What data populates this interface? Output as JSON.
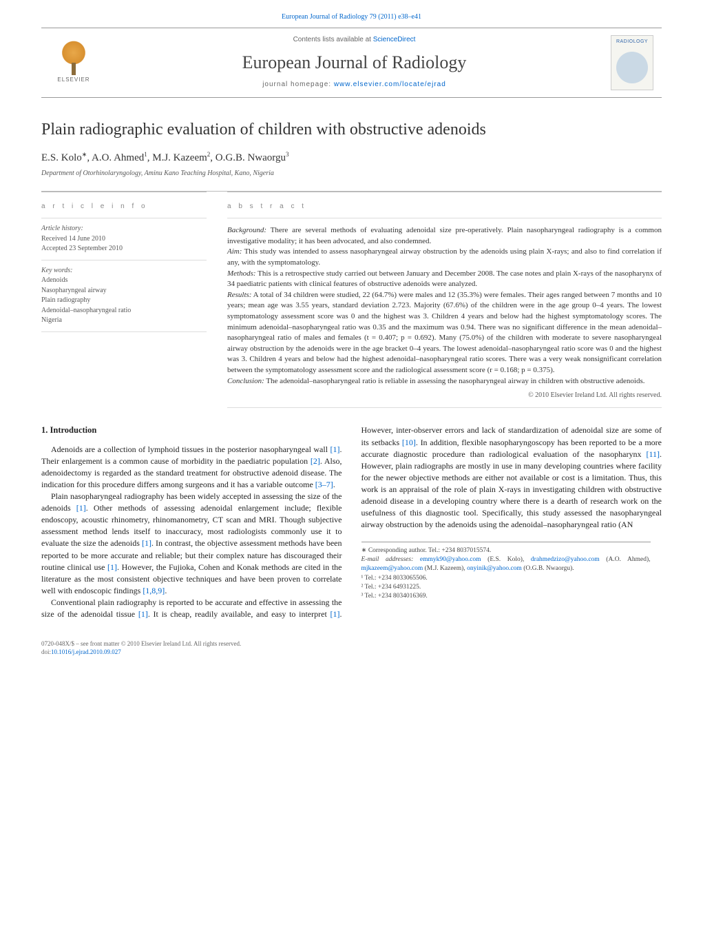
{
  "journal_ref": "European Journal of Radiology 79 (2011) e38–e41",
  "masthead": {
    "contents_prefix": "Contents lists available at ",
    "contents_link": "ScienceDirect",
    "journal_name": "European Journal of Radiology",
    "homepage_prefix": "journal homepage: ",
    "homepage_url": "www.elsevier.com/locate/ejrad",
    "publisher": "ELSEVIER",
    "cover_label": "RADIOLOGY"
  },
  "article": {
    "title": "Plain radiographic evaluation of children with obstructive adenoids",
    "authors_html": "E.S. Kolo<sup>∗</sup>, A.O. Ahmed<sup>1</sup>, M.J. Kazeem<sup>2</sup>, O.G.B. Nwaorgu<sup>3</sup>",
    "affiliation": "Department of Otorhinolaryngology, Aminu Kano Teaching Hospital, Kano, Nigeria"
  },
  "info": {
    "heading": "a r t i c l e   i n f o",
    "history_label": "Article history:",
    "received": "Received 14 June 2010",
    "accepted": "Accepted 23 September 2010",
    "keywords_label": "Key words:",
    "keywords": [
      "Adenoids",
      "Nasopharyngeal airway",
      "Plain radiography",
      "Adenoidal–nasopharyngeal ratio",
      "Nigeria"
    ]
  },
  "abstract": {
    "heading": "a b s t r a c t",
    "background_label": "Background:",
    "background": " There are several methods of evaluating adenoidal size pre-operatively. Plain nasopharyngeal radiography is a common investigative modality; it has been advocated, and also condemned.",
    "aim_label": "Aim:",
    "aim": " This study was intended to assess nasopharyngeal airway obstruction by the adenoids using plain X-rays; and also to find correlation if any, with the symptomatology.",
    "methods_label": "Methods:",
    "methods": " This is a retrospective study carried out between January and December 2008. The case notes and plain X-rays of the nasopharynx of 34 paediatric patients with clinical features of obstructive adenoids were analyzed.",
    "results_label": "Results:",
    "results": " A total of 34 children were studied, 22 (64.7%) were males and 12 (35.3%) were females. Their ages ranged between 7 months and 10 years; mean age was 3.55 years, standard deviation 2.723. Majority (67.6%) of the children were in the age group 0–4 years. The lowest symptomatology assessment score was 0 and the highest was 3. Children 4 years and below had the highest symptomatology scores. The minimum adenoidal–nasopharyngeal ratio was 0.35 and the maximum was 0.94. There was no significant difference in the mean adenoidal–nasopharyngeal ratio of males and females (t = 0.407; p = 0.692). Many (75.0%) of the children with moderate to severe nasopharyngeal airway obstruction by the adenoids were in the age bracket 0–4 years. The lowest adenoidal–nasopharyngeal ratio score was 0 and the highest was 3. Children 4 years and below had the highest adenoidal–nasopharyngeal ratio scores. There was a very weak nonsignificant correlation between the symptomatology assessment score and the radiological assessment score (r = 0.168; p = 0.375).",
    "conclusion_label": "Conclusion:",
    "conclusion": " The adenoidal–nasopharyngeal ratio is reliable in assessing the nasopharyngeal airway in children with obstructive adenoids.",
    "copyright": "© 2010 Elsevier Ireland Ltd. All rights reserved."
  },
  "section1": {
    "heading": "1. Introduction",
    "p1a": "Adenoids are a collection of lymphoid tissues in the posterior nasopharyngeal wall ",
    "p1b": ". Their enlargement is a common cause of morbidity in the paediatric population ",
    "p1c": ". Also, adenoidectomy is regarded as the standard treatment for obstructive adenoid disease. The indication for this procedure differs among surgeons and it has a variable outcome ",
    "p1d": ".",
    "p2a": "Plain nasopharyngeal radiography has been widely accepted in assessing the size of the adenoids ",
    "p2b": ". Other methods of assessing adenoidal enlargement include; flexible endoscopy, acoustic rhinometry, rhinomanometry, CT scan and MRI. Though subjective assessment method lends itself to inaccuracy, most radiologists commonly use it to evaluate the size the adenoids ",
    "p2c": ". In contrast, the objective assessment methods have been reported to be more accurate and reliable; but their complex nature has discouraged their routine clinical use ",
    "p2d": ". However, the Fujioka, Cohen and Konak methods are cited in the literature as the most consistent objective techniques and have been proven to correlate well with endoscopic findings ",
    "p2e": ".",
    "p3a": "Conventional plain radiography is reported to be accurate and effective in assessing the size of the adenoidal tissue ",
    "p3b": ". It is cheap, readily available, and easy to interpret ",
    "p3c": ". However, inter-observer errors and lack of standardization of adenoidal size are some of its setbacks ",
    "p3d": ". In addition, flexible nasopharyngoscopy has been reported to be a more accurate diagnostic procedure than radiological evaluation of the nasopharynx ",
    "p3e": ". However, plain radiographs are mostly in use in many developing countries where facility for the newer objective methods are either not available or cost is a limitation. Thus, this work is an appraisal of the role of plain X-rays in investigating children with obstructive adenoid disease in a developing country where there is a dearth of research work on the usefulness of this diagnostic tool. Specifically, this study assessed the nasopharyngeal airway obstruction by the adenoids using the adenoidal–nasopharyngeal ratio (AN",
    "ref1": "[1]",
    "ref2": "[2]",
    "ref37": "[3–7]",
    "ref189": "[1,8,9]",
    "ref10": "[10]",
    "ref11": "[11]"
  },
  "footnotes": {
    "corr_label": "∗ Corresponding author. Tel.: +234 8037015574.",
    "email_label": "E-mail addresses:",
    "e1_addr": "emmyk90@yahoo.com",
    "e1_name": " (E.S. Kolo), ",
    "e2_addr": "drahmedzizo@yahoo.com",
    "e2_name": " (A.O. Ahmed), ",
    "e3_addr": "mjkazeem@yahoo.com",
    "e3_name": " (M.J. Kazeem), ",
    "e4_addr": "onyinik@yahoo.com",
    "e4_name": " (O.G.B. Nwaorgu).",
    "t1": "¹ Tel.: +234 8033065506.",
    "t2": "² Tel.: +234 64931225.",
    "t3": "³ Tel.: +234 8034016369."
  },
  "footer": {
    "line1": "0720-048X/$ – see front matter © 2010 Elsevier Ireland Ltd. All rights reserved.",
    "doi_label": "doi:",
    "doi": "10.1016/j.ejrad.2010.09.027"
  },
  "colors": {
    "link": "#0066cc",
    "text": "#1a1a1a",
    "muted": "#666",
    "rule": "#bbb"
  }
}
